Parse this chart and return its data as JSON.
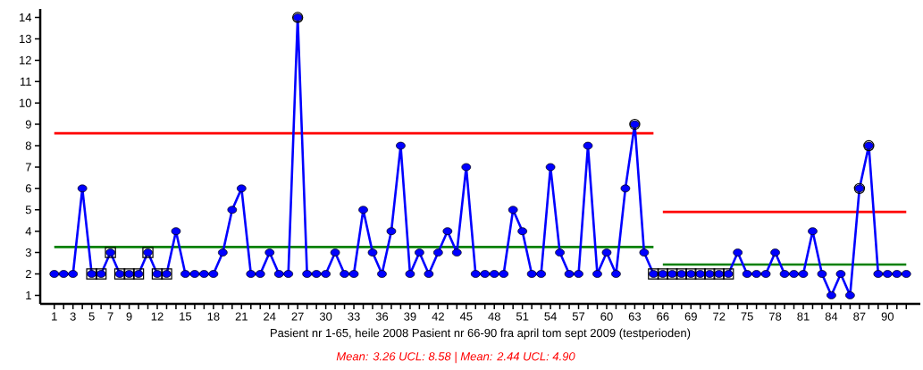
{
  "chart_data": {
    "type": "line",
    "xlabel": "Pasient nr 1-65, heile 2008  Pasient nr 66-90 fra april tom sept 2009 (testperioden)",
    "annotations": [
      "Mean: 3.26 UCL: 8.58 | Mean: 2.44 UCL: 4.90"
    ],
    "xlim": [
      -0.5,
      93.5
    ],
    "ylim": [
      0.6,
      14.4
    ],
    "yticks": [
      1,
      2,
      3,
      4,
      5,
      6,
      7,
      8,
      9,
      10,
      11,
      12,
      13,
      14
    ],
    "xticks": [
      1,
      {
        "value": 2,
        "label": null
      },
      3,
      {
        "value": 4,
        "label": null
      },
      5,
      {
        "value": 6,
        "label": null
      },
      7,
      {
        "value": 8,
        "label": null
      },
      9,
      {
        "value": 10,
        "label": null
      },
      {
        "value": 11,
        "label": null
      },
      12,
      {
        "value": 13,
        "label": null
      },
      {
        "value": 14,
        "label": null
      },
      15,
      {
        "value": 16,
        "label": null
      },
      {
        "value": 17,
        "label": null
      },
      18,
      {
        "value": 19,
        "label": null
      },
      {
        "value": 20,
        "label": null
      },
      21,
      {
        "value": 22,
        "label": null
      },
      {
        "value": 23,
        "label": null
      },
      24,
      {
        "value": 25,
        "label": null
      },
      {
        "value": 26,
        "label": null
      },
      27,
      {
        "value": 28,
        "label": null
      },
      {
        "value": 29,
        "label": null
      },
      30,
      {
        "value": 31,
        "label": null
      },
      {
        "value": 32,
        "label": null
      },
      33,
      {
        "value": 34,
        "label": null
      },
      {
        "value": 35,
        "label": null
      },
      36,
      {
        "value": 37,
        "label": null
      },
      {
        "value": 38,
        "label": null
      },
      39,
      {
        "value": 40,
        "label": null
      },
      {
        "value": 41,
        "label": null
      },
      42,
      {
        "value": 43,
        "label": null
      },
      {
        "value": 44,
        "label": null
      },
      45,
      {
        "value": 46,
        "label": null
      },
      {
        "value": 47,
        "label": null
      },
      48,
      {
        "value": 49,
        "label": null
      },
      {
        "value": 50,
        "label": null
      },
      51,
      {
        "value": 52,
        "label": null
      },
      {
        "value": 53,
        "label": null
      },
      54,
      {
        "value": 55,
        "label": null
      },
      {
        "value": 56,
        "label": null
      },
      57,
      {
        "value": 58,
        "label": null
      },
      {
        "value": 59,
        "label": null
      },
      60,
      {
        "value": 61,
        "label": null
      },
      {
        "value": 62,
        "label": null
      },
      63,
      {
        "value": 64,
        "label": null
      },
      {
        "value": 65,
        "label": null
      },
      66,
      {
        "value": 67,
        "label": null
      },
      {
        "value": 68,
        "label": null
      },
      69,
      {
        "value": 70,
        "label": null
      },
      {
        "value": 71,
        "label": null
      },
      72,
      {
        "value": 73,
        "label": null
      },
      {
        "value": 74,
        "label": null
      },
      75,
      {
        "value": 76,
        "label": null
      },
      {
        "value": 77,
        "label": null
      },
      78,
      {
        "value": 79,
        "label": null
      },
      {
        "value": 80,
        "label": null
      },
      81,
      {
        "value": 82,
        "label": null
      },
      {
        "value": 83,
        "label": null
      },
      84,
      {
        "value": 85,
        "label": null
      },
      {
        "value": 86,
        "label": null
      },
      87,
      {
        "value": 88,
        "label": null
      },
      {
        "value": 89,
        "label": null
      },
      90,
      {
        "value": 91,
        "label": null
      },
      {
        "value": 92,
        "label": null
      }
    ],
    "series": [
      {
        "type": "line",
        "color": "#ff0000",
        "marker": "none",
        "x": [
          1,
          65
        ],
        "values": [
          8.58,
          8.58
        ]
      },
      {
        "type": "line",
        "color": "#008000",
        "marker": "none",
        "x": [
          1,
          65
        ],
        "values": [
          3.26,
          3.26
        ]
      },
      {
        "type": "line",
        "color": "#ff0000",
        "marker": "none",
        "x": [
          66,
          92
        ],
        "values": [
          4.9,
          4.9
        ]
      },
      {
        "type": "line",
        "color": "#008000",
        "marker": "none",
        "x": [
          66,
          92
        ],
        "values": [
          2.44,
          2.44
        ]
      },
      {
        "type": "line",
        "color": "#0000ff",
        "marker": "circle",
        "x": [
          1,
          2,
          3,
          4,
          5,
          6,
          7,
          8,
          9,
          10,
          11,
          12,
          13,
          14,
          15,
          16,
          17,
          18,
          19,
          20,
          21,
          22,
          23,
          24,
          25,
          26,
          27,
          28,
          29,
          30,
          31,
          32,
          33,
          34,
          35,
          36,
          37,
          38,
          39,
          40,
          41,
          42,
          43,
          44,
          45,
          46,
          47,
          48,
          49,
          50,
          51,
          52,
          53,
          54,
          55,
          56,
          57,
          58,
          59,
          60,
          61,
          62,
          63,
          64,
          65,
          66,
          67,
          68,
          69,
          70,
          71,
          72,
          73,
          74,
          75,
          76,
          77,
          78,
          79,
          80,
          81,
          82,
          83,
          84,
          85,
          86,
          87,
          88,
          89,
          90,
          91,
          92
        ],
        "values": [
          2,
          2,
          2,
          6,
          2,
          2,
          3,
          2,
          2,
          2,
          3,
          2,
          2,
          4,
          2,
          2,
          2,
          2,
          3,
          5,
          6,
          2,
          2,
          3,
          2,
          2,
          14,
          2,
          2,
          2,
          3,
          2,
          2,
          5,
          3,
          2,
          4,
          8,
          2,
          3,
          2,
          3,
          4,
          3,
          7,
          2,
          2,
          2,
          2,
          5,
          4,
          2,
          2,
          7,
          3,
          2,
          2,
          8,
          2,
          3,
          2,
          6,
          9,
          3,
          2,
          2,
          2,
          2,
          2,
          2,
          2,
          2,
          2,
          3,
          2,
          2,
          2,
          3,
          2,
          2,
          2,
          4,
          2,
          1,
          2,
          1,
          6,
          8,
          2,
          2,
          2,
          2
        ]
      },
      {
        "type": "scatter",
        "color": "#000000",
        "marker": "square",
        "x": [
          5,
          6,
          7,
          8,
          9,
          10,
          11,
          12,
          13,
          65,
          66,
          67,
          68,
          69,
          70,
          71,
          72,
          73
        ],
        "values": [
          2,
          2,
          3,
          2,
          2,
          2,
          3,
          2,
          2,
          2,
          2,
          2,
          2,
          2,
          2,
          2,
          2,
          2
        ]
      },
      {
        "type": "scatter",
        "color": "#000000",
        "marker": "circle",
        "x": [
          27,
          63,
          87,
          88
        ],
        "values": [
          14,
          9,
          6,
          8
        ]
      }
    ]
  }
}
